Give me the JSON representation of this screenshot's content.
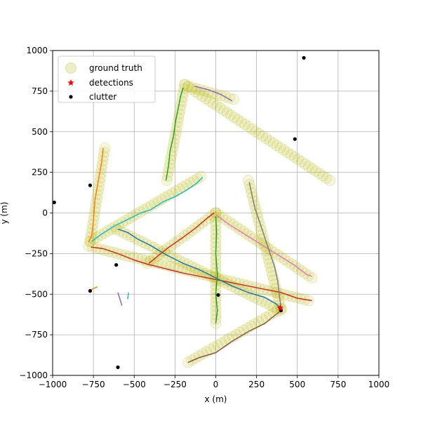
{
  "chart_data": {
    "type": "scatter",
    "title": "",
    "xlabel": "x (m)",
    "ylabel": "y (m)",
    "xlim": [
      -1000,
      1000
    ],
    "ylim": [
      -1000,
      1000
    ],
    "xticks": [
      -1000,
      -750,
      -500,
      -250,
      0,
      250,
      500,
      750,
      1000
    ],
    "yticks": [
      -1000,
      -750,
      -500,
      -250,
      0,
      250,
      500,
      750,
      1000
    ],
    "xtick_labels": [
      "−1000",
      "−750",
      "−500",
      "−250",
      "0",
      "250",
      "500",
      "750",
      "1000"
    ],
    "ytick_labels": [
      "−1000",
      "−750",
      "−500",
      "−250",
      "0",
      "250",
      "500",
      "750",
      "1000"
    ],
    "grid": true,
    "legend": {
      "placement": "top-left",
      "entries": [
        {
          "label": "ground truth",
          "marker": "circle",
          "color": "#e6e69a"
        },
        {
          "label": "detections",
          "marker": "star",
          "color": "#ff0000"
        },
        {
          "label": "clutter",
          "marker": "dot",
          "color": "#000000"
        }
      ]
    },
    "ground_truth": {
      "color": "#bcbd22",
      "paths": [
        [
          [
            -770,
            -175
          ],
          [
            -680,
            400
          ]
        ],
        [
          [
            -770,
            -175
          ],
          [
            -90,
            225
          ]
        ],
        [
          [
            -780,
            -205
          ],
          [
            570,
            -540
          ]
        ],
        [
          [
            -300,
            200
          ],
          [
            -190,
            790
          ]
        ],
        [
          [
            -190,
            790
          ],
          [
            700,
            200
          ]
        ],
        [
          [
            -170,
            780
          ],
          [
            110,
            700
          ]
        ],
        [
          [
            -610,
            -100
          ],
          [
            400,
            -600
          ]
        ],
        [
          [
            -420,
            -310
          ],
          [
            0,
            0
          ]
        ],
        [
          [
            0,
            0
          ],
          [
            0,
            -680
          ]
        ],
        [
          [
            0,
            0
          ],
          [
            590,
            -400
          ]
        ],
        [
          [
            200,
            200
          ],
          [
            400,
            -590
          ]
        ],
        [
          [
            400,
            -590
          ],
          [
            -170,
            -920
          ]
        ]
      ]
    },
    "tracks": [
      {
        "color": "#ff7f0e",
        "points": [
          [
            -780,
            -180
          ],
          [
            -760,
            -140
          ],
          [
            -750,
            -50
          ],
          [
            -740,
            80
          ],
          [
            -720,
            200
          ],
          [
            -700,
            310
          ],
          [
            -690,
            400
          ]
        ]
      },
      {
        "color": "#ff7f0e",
        "points": [
          [
            -770,
            -475
          ],
          [
            -725,
            -455
          ]
        ]
      },
      {
        "color": "#17becf",
        "points": [
          [
            -760,
            -175
          ],
          [
            -700,
            -130
          ],
          [
            -620,
            -80
          ],
          [
            -540,
            -40
          ],
          [
            -460,
            0
          ],
          [
            -400,
            20
          ],
          [
            -320,
            70
          ],
          [
            -250,
            100
          ],
          [
            -180,
            140
          ],
          [
            -120,
            180
          ],
          [
            -80,
            220
          ]
        ]
      },
      {
        "color": "#17becf",
        "points": [
          [
            -540,
            -530
          ],
          [
            -535,
            -490
          ]
        ]
      },
      {
        "color": "#d62728",
        "points": [
          [
            -765,
            -210
          ],
          [
            -690,
            -220
          ],
          [
            -600,
            -250
          ],
          [
            -500,
            -290
          ],
          [
            -420,
            -315
          ],
          [
            -300,
            -345
          ],
          [
            -200,
            -370
          ],
          [
            -100,
            -390
          ],
          [
            0,
            -410
          ],
          [
            100,
            -430
          ],
          [
            200,
            -450
          ],
          [
            300,
            -470
          ],
          [
            400,
            -490
          ],
          [
            500,
            -525
          ],
          [
            590,
            -540
          ]
        ]
      },
      {
        "color": "#d62728",
        "points": [
          [
            -410,
            -310
          ],
          [
            -300,
            -220
          ],
          [
            -200,
            -150
          ],
          [
            -120,
            -90
          ],
          [
            -50,
            -30
          ],
          [
            -10,
            0
          ]
        ]
      },
      {
        "color": "#2ca02c",
        "points": [
          [
            -305,
            200
          ],
          [
            -290,
            290
          ],
          [
            -280,
            380
          ],
          [
            -260,
            470
          ],
          [
            -245,
            570
          ],
          [
            -225,
            670
          ],
          [
            -215,
            720
          ],
          [
            -200,
            770
          ]
        ]
      },
      {
        "color": "#2ca02c",
        "points": [
          [
            0,
            -20
          ],
          [
            5,
            -120
          ],
          [
            0,
            -250
          ],
          [
            10,
            -380
          ],
          [
            0,
            -500
          ],
          [
            10,
            -600
          ],
          [
            0,
            -680
          ]
        ]
      },
      {
        "color": "#9467bd",
        "points": [
          [
            -130,
            780
          ],
          [
            -50,
            760
          ],
          [
            30,
            730
          ],
          [
            100,
            690
          ]
        ]
      },
      {
        "color": "#9467bd",
        "points": [
          [
            -600,
            -490
          ],
          [
            -575,
            -570
          ]
        ]
      },
      {
        "color": "#1f77b4",
        "points": [
          [
            -600,
            -100
          ],
          [
            -540,
            -120
          ],
          [
            -480,
            -160
          ],
          [
            -400,
            -200
          ],
          [
            -300,
            -260
          ],
          [
            -200,
            -310
          ],
          [
            -100,
            -350
          ],
          [
            0,
            -400
          ],
          [
            100,
            -450
          ],
          [
            200,
            -490
          ],
          [
            300,
            -520
          ],
          [
            370,
            -560
          ],
          [
            400,
            -590
          ]
        ]
      },
      {
        "color": "#e377c2",
        "points": [
          [
            0,
            -10
          ],
          [
            80,
            -70
          ],
          [
            160,
            -120
          ],
          [
            240,
            -170
          ],
          [
            320,
            -220
          ],
          [
            400,
            -270
          ],
          [
            480,
            -320
          ],
          [
            560,
            -380
          ],
          [
            590,
            -390
          ]
        ]
      },
      {
        "color": "#7f7f7f",
        "points": [
          [
            205,
            190
          ],
          [
            220,
            120
          ],
          [
            240,
            30
          ],
          [
            270,
            -60
          ],
          [
            300,
            -150
          ],
          [
            330,
            -240
          ],
          [
            360,
            -330
          ],
          [
            380,
            -420
          ],
          [
            390,
            -510
          ],
          [
            400,
            -580
          ]
        ]
      },
      {
        "color": "#8c564b",
        "points": [
          [
            -170,
            -920
          ],
          [
            -100,
            -890
          ],
          [
            0,
            -860
          ],
          [
            100,
            -790
          ],
          [
            200,
            -730
          ],
          [
            300,
            -680
          ],
          [
            400,
            -600
          ]
        ]
      }
    ],
    "detections": [
      [
        395,
        -585
      ]
    ],
    "clutter": [
      [
        -990,
        65
      ],
      [
        -770,
        170
      ],
      [
        -610,
        -320
      ],
      [
        -770,
        -480
      ],
      [
        -600,
        -950
      ],
      [
        540,
        955
      ],
      [
        485,
        455
      ],
      [
        15,
        -505
      ],
      [
        400,
        -600
      ]
    ]
  }
}
